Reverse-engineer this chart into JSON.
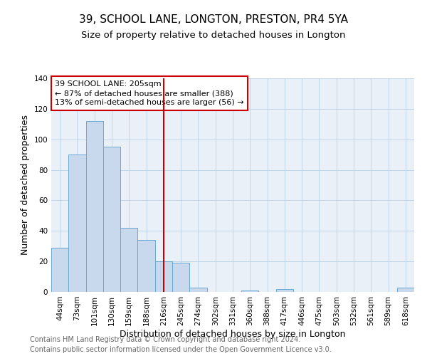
{
  "title": "39, SCHOOL LANE, LONGTON, PRESTON, PR4 5YA",
  "subtitle": "Size of property relative to detached houses in Longton",
  "xlabel": "Distribution of detached houses by size in Longton",
  "ylabel": "Number of detached properties",
  "bar_labels": [
    "44sqm",
    "73sqm",
    "101sqm",
    "130sqm",
    "159sqm",
    "188sqm",
    "216sqm",
    "245sqm",
    "274sqm",
    "302sqm",
    "331sqm",
    "360sqm",
    "388sqm",
    "417sqm",
    "446sqm",
    "475sqm",
    "503sqm",
    "532sqm",
    "561sqm",
    "589sqm",
    "618sqm"
  ],
  "bar_values": [
    29,
    90,
    112,
    95,
    42,
    34,
    20,
    19,
    3,
    0,
    0,
    1,
    0,
    2,
    0,
    0,
    0,
    0,
    0,
    0,
    3
  ],
  "bar_color": "#c8d9ee",
  "bar_edge_color": "#6aaad4",
  "vline_x": 6,
  "vline_color": "#cc0000",
  "annotation_title": "39 SCHOOL LANE: 205sqm",
  "annotation_line1": "← 87% of detached houses are smaller (388)",
  "annotation_line2": "13% of semi-detached houses are larger (56) →",
  "annotation_box_color": "#cc0000",
  "ylim": [
    0,
    140
  ],
  "yticks": [
    0,
    20,
    40,
    60,
    80,
    100,
    120,
    140
  ],
  "footer1": "Contains HM Land Registry data © Crown copyright and database right 2024.",
  "footer2": "Contains public sector information licensed under the Open Government Licence v3.0.",
  "bg_color": "#ffffff",
  "plot_bg_color": "#eaf0f8",
  "title_fontsize": 11,
  "subtitle_fontsize": 9.5,
  "axis_label_fontsize": 9,
  "tick_fontsize": 7.5,
  "footer_fontsize": 7,
  "grid_color": "#b8cfe8"
}
